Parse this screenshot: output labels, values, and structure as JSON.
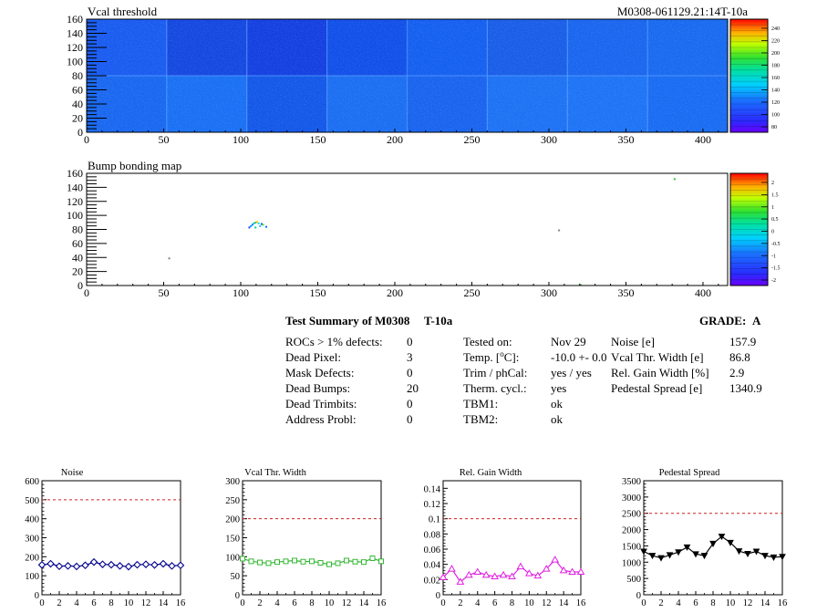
{
  "charts": {
    "vcal": {
      "title": "Vcal threshold",
      "id_label": "M0308-061129.21:14T-10a",
      "x_ticks": [
        "0",
        "50",
        "100",
        "150",
        "200",
        "250",
        "300",
        "350",
        "400"
      ],
      "y_ticks": [
        "0",
        "20",
        "40",
        "60",
        "80",
        "100",
        "120",
        "140",
        "160"
      ],
      "palette_labels": [
        "240",
        "220",
        "200",
        "180",
        "160",
        "140",
        "120",
        "100",
        "80"
      ]
    },
    "bump": {
      "title": "Bump bonding map",
      "x_ticks": [
        "0",
        "50",
        "100",
        "150",
        "200",
        "250",
        "300",
        "350",
        "400"
      ],
      "y_ticks": [
        "0",
        "20",
        "40",
        "60",
        "80",
        "100",
        "120",
        "140",
        "160"
      ],
      "palette_labels": [
        "2",
        "1.5",
        "1",
        "0.5",
        "0",
        "-0.5",
        "-1",
        "-1.5",
        "-2"
      ]
    }
  },
  "summary": {
    "title": "Test Summary of M0308",
    "test": "T-10a",
    "grade_label": "GRADE:",
    "grade": "A",
    "col1": [
      {
        "label": "ROCs > 1% defects:",
        "value": "0"
      },
      {
        "label": "Dead Pixel:",
        "value": "3"
      },
      {
        "label": "Mask Defects:",
        "value": "0"
      },
      {
        "label": "Dead Bumps:",
        "value": "20"
      },
      {
        "label": "Dead Trimbits:",
        "value": "0"
      },
      {
        "label": "Address Probl:",
        "value": "0"
      }
    ],
    "col2": [
      {
        "label": "Tested on:",
        "value": "Nov 29"
      },
      {
        "label": "Temp. [",
        "sup": "o",
        "label_end": "C]:",
        "value": "-10.0 +- 0.0"
      },
      {
        "label": "Trim / phCal:",
        "value": "yes / yes"
      },
      {
        "label": "Therm. cycl.:",
        "value": "yes"
      },
      {
        "label": "TBM1:",
        "value": "ok"
      },
      {
        "label": "TBM2:",
        "value": "ok"
      }
    ],
    "col3": [
      {
        "label": "Noise [e]",
        "value": "157.9"
      },
      {
        "label": "Vcal Thr. Width [e]",
        "value": "86.8"
      },
      {
        "label": "Rel. Gain Width [%]",
        "value": "2.9"
      },
      {
        "label": "Pedestal Spread [e]",
        "value": "1340.9"
      }
    ]
  },
  "chart_data": [
    {
      "type": "line",
      "title": "Noise",
      "color": "#00008b",
      "marker": "diamond",
      "x": [
        0,
        1,
        2,
        3,
        4,
        5,
        6,
        7,
        8,
        9,
        10,
        11,
        12,
        13,
        14,
        15,
        16
      ],
      "values": [
        157,
        163,
        150,
        152,
        149,
        155,
        172,
        160,
        158,
        152,
        148,
        158,
        160,
        157,
        163,
        152,
        155
      ],
      "ylim": [
        0,
        600
      ],
      "y_ticks": [
        "0",
        "100",
        "200",
        "300",
        "400",
        "500",
        "600"
      ],
      "x_ticks": [
        "0",
        "2",
        "4",
        "6",
        "8",
        "10",
        "12",
        "14",
        "16"
      ],
      "threshold": 500
    },
    {
      "type": "line",
      "title": "Vcal Thr. Width",
      "color": "#33b833",
      "marker": "square",
      "x": [
        0,
        1,
        2,
        3,
        4,
        5,
        6,
        7,
        8,
        9,
        10,
        11,
        12,
        13,
        14,
        15,
        16
      ],
      "values": [
        95,
        88,
        85,
        83,
        86,
        88,
        90,
        87,
        88,
        84,
        80,
        83,
        90,
        87,
        86,
        96,
        88
      ],
      "ylim": [
        0,
        300
      ],
      "y_ticks": [
        "0",
        "50",
        "100",
        "150",
        "200",
        "250",
        "300"
      ],
      "x_ticks": [
        "0",
        "2",
        "4",
        "6",
        "8",
        "10",
        "12",
        "14",
        "16"
      ],
      "threshold": 200
    },
    {
      "type": "line",
      "title": "Rel. Gain Width",
      "color": "#e020e0",
      "marker": "triangle-up",
      "x": [
        0,
        1,
        2,
        3,
        4,
        5,
        6,
        7,
        8,
        9,
        10,
        11,
        12,
        13,
        14,
        15,
        16
      ],
      "values": [
        0.023,
        0.034,
        0.017,
        0.026,
        0.03,
        0.026,
        0.024,
        0.026,
        0.024,
        0.037,
        0.028,
        0.025,
        0.034,
        0.046,
        0.032,
        0.03,
        0.03
      ],
      "ylim": [
        0,
        0.15
      ],
      "y_ticks": [
        "0",
        "0.02",
        "0.04",
        "0.06",
        "0.08",
        "0.1",
        "0.12",
        "0.14"
      ],
      "y_tick_values": [
        0,
        0.02,
        0.04,
        0.06,
        0.08,
        0.1,
        0.12,
        0.14
      ],
      "x_ticks": [
        "0",
        "2",
        "4",
        "6",
        "8",
        "10",
        "12",
        "14",
        "16"
      ],
      "threshold": 0.1
    },
    {
      "type": "line",
      "title": "Pedestal Spread",
      "color": "#000000",
      "marker": "triangle-down",
      "x": [
        0,
        1,
        2,
        3,
        4,
        5,
        6,
        7,
        8,
        9,
        10,
        11,
        12,
        13,
        14,
        15,
        16
      ],
      "values": [
        1330,
        1200,
        1130,
        1220,
        1310,
        1460,
        1250,
        1200,
        1570,
        1790,
        1600,
        1340,
        1260,
        1330,
        1200,
        1150,
        1170
      ],
      "ylim": [
        0,
        3500
      ],
      "y_ticks": [
        "0",
        "500",
        "1000",
        "1500",
        "2000",
        "2500",
        "3000",
        "3500"
      ],
      "x_ticks": [
        "0",
        "2",
        "4",
        "6",
        "8",
        "10",
        "12",
        "14",
        "16"
      ],
      "threshold": 2500
    }
  ]
}
